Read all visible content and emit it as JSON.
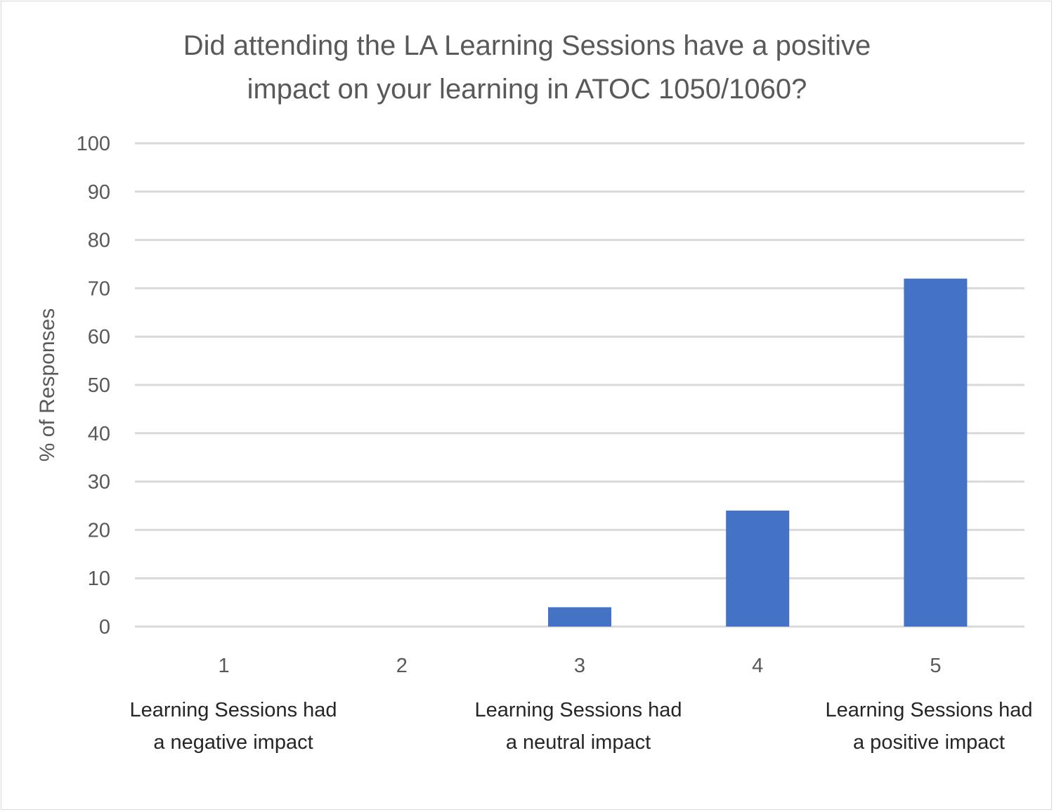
{
  "chart_data": {
    "type": "bar",
    "title": "Did attending the LA Learning Sessions have a positive impact on your learning in ATOC 1050/1060?",
    "xlabel": "",
    "ylabel": "% of Responses",
    "ylim": [
      0,
      100
    ],
    "yticks": [
      0,
      10,
      20,
      30,
      40,
      50,
      60,
      70,
      80,
      90,
      100
    ],
    "categories": [
      "1",
      "2",
      "3",
      "4",
      "5"
    ],
    "values": [
      0,
      0,
      4,
      24,
      72
    ],
    "category_descriptions": [
      "Learning Sessions had a negative impact",
      "",
      "Learning Sessions had a neutral impact",
      "",
      "Learning Sessions had a positive impact"
    ],
    "bar_color": "#4472C4",
    "gridlines": true,
    "legend": "none"
  }
}
